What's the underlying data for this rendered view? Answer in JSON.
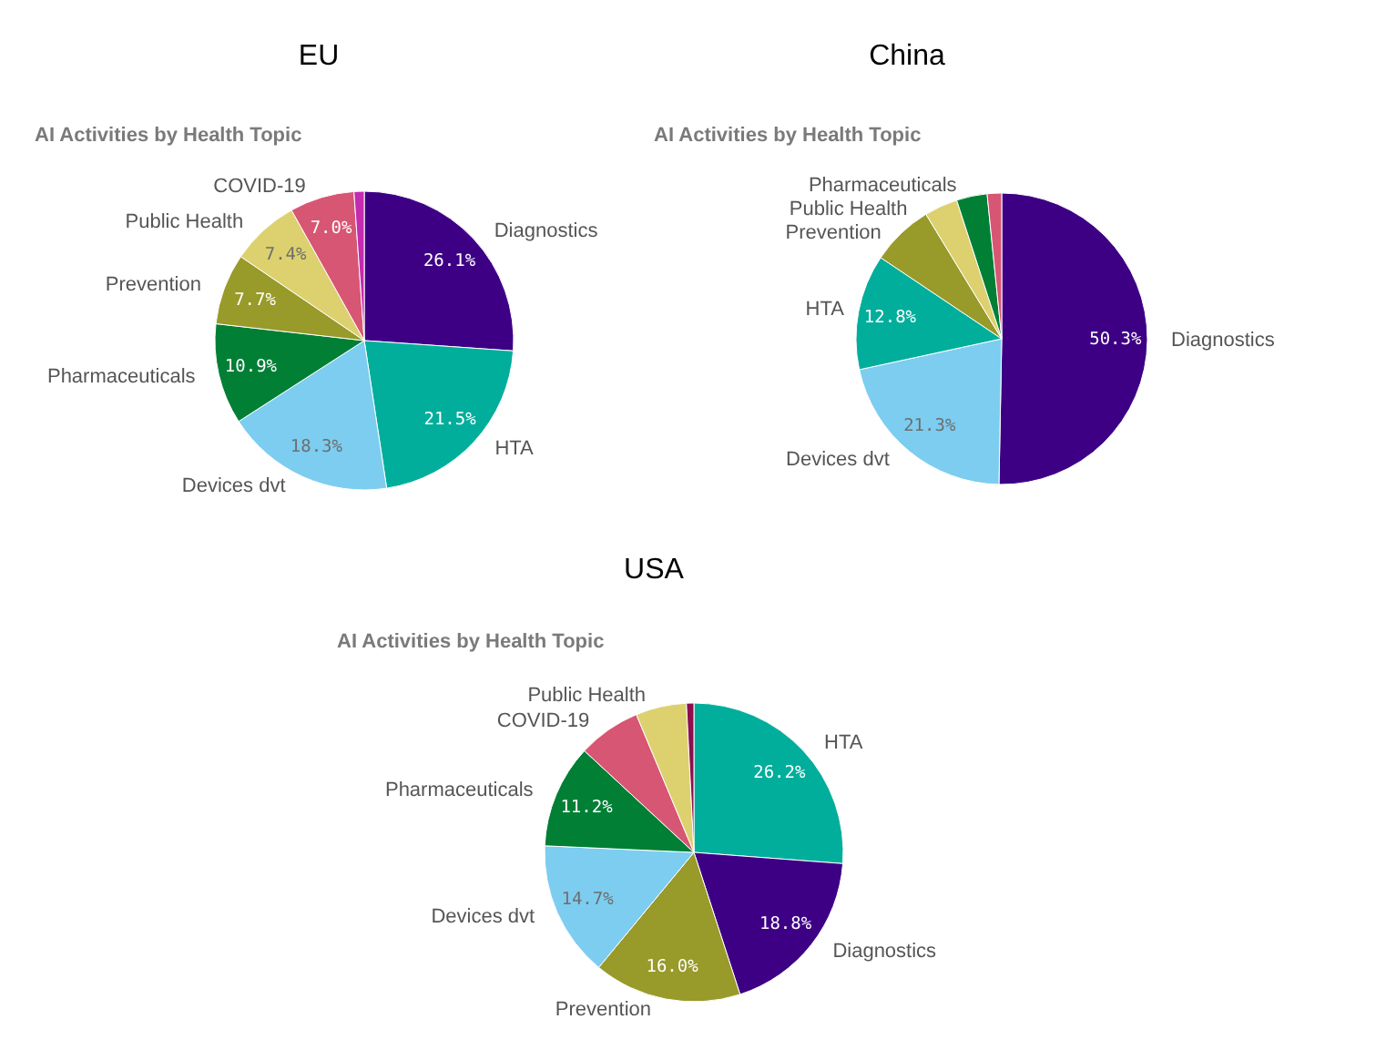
{
  "chart_data": [
    {
      "type": "pie",
      "title": "EU",
      "subtitle": "AI Activities by Health Topic",
      "categories": [
        "Diagnostics",
        "HTA",
        "Devices dvt",
        "Pharmaceuticals",
        "Prevention",
        "Public Health",
        "COVID-19",
        null
      ],
      "values": [
        26.1,
        21.5,
        18.3,
        10.9,
        7.7,
        7.4,
        7.0,
        1.1
      ],
      "value_labels": [
        "26.1%",
        "21.5%",
        "18.3%",
        "10.9%",
        "7.7%",
        "7.4%",
        "7.0%",
        null
      ],
      "colors": [
        "#3d0085",
        "#00ae9b",
        "#7ccdf0",
        "#007f35",
        "#989a2a",
        "#ddd16f",
        "#d75673",
        "#c42bb0"
      ]
    },
    {
      "type": "pie",
      "title": "China",
      "subtitle": "AI Activities by Health Topic",
      "categories": [
        "Diagnostics",
        "Devices dvt",
        "HTA",
        "Prevention",
        "Public Health",
        "Pharmaceuticals",
        null
      ],
      "values": [
        50.3,
        21.3,
        12.8,
        6.9,
        3.7,
        3.4,
        1.6
      ],
      "value_labels": [
        "50.3%",
        "21.3%",
        "12.8%",
        null,
        null,
        null,
        null
      ],
      "colors": [
        "#3d0085",
        "#7ccdf0",
        "#00ae9b",
        "#989a2a",
        "#ddd16f",
        "#007f35",
        "#d75673"
      ]
    },
    {
      "type": "pie",
      "title": "USA",
      "subtitle": "AI Activities by Health Topic",
      "categories": [
        "HTA",
        "Diagnostics",
        "Prevention",
        "Devices dvt",
        "Pharmaceuticals",
        "COVID-19",
        "Public Health",
        null
      ],
      "values": [
        26.2,
        18.8,
        16.0,
        14.7,
        11.2,
        6.8,
        5.5,
        0.8
      ],
      "value_labels": [
        "26.2%",
        "18.8%",
        "16.0%",
        "14.7%",
        "11.2%",
        null,
        null,
        null
      ],
      "colors": [
        "#00ae9b",
        "#3d0085",
        "#989a2a",
        "#7ccdf0",
        "#007f35",
        "#d75673",
        "#ddd16f",
        "#8c0f4f"
      ]
    }
  ]
}
